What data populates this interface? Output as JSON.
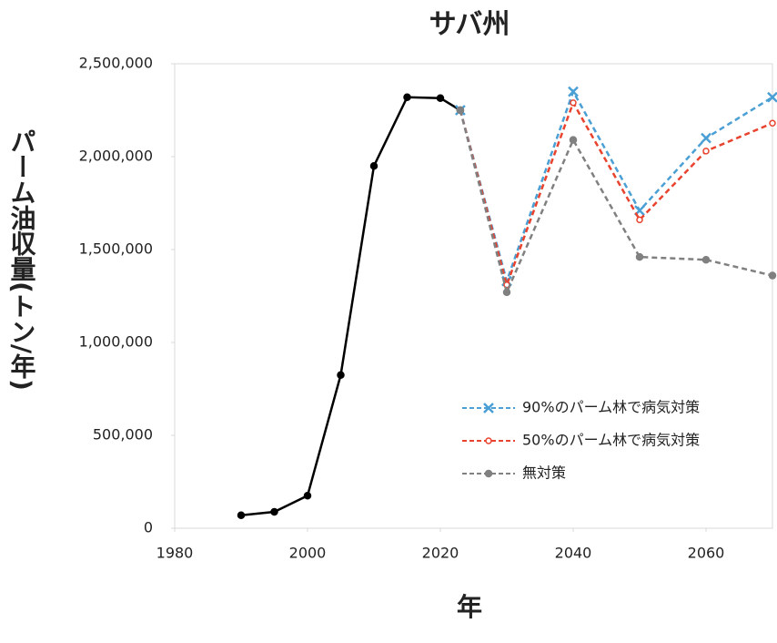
{
  "chart_data": {
    "type": "line",
    "title": "サバ州",
    "xlabel": "年",
    "ylabel": "パーム油収量(トン/年)",
    "xlim": [
      1980,
      2070
    ],
    "xticks": [
      1980,
      2000,
      2020,
      2040,
      2060
    ],
    "ylim": [
      0,
      2500000
    ],
    "yticks": [
      0,
      {
        "value": 500000,
        "label": "500,000"
      },
      {
        "value": 1000000,
        "label": "1,000,000"
      },
      {
        "value": 1500000,
        "label": "1,500,000"
      },
      {
        "value": 2000000,
        "label": "2,000,000"
      },
      {
        "value": 2500000,
        "label": "2,500,000"
      }
    ],
    "legend": "lower right",
    "series": [
      {
        "color": "#000000",
        "marker": "dot",
        "dashed": false,
        "x": [
          1990,
          1995,
          2000,
          2005,
          2010,
          2015,
          2020,
          2023
        ],
        "values": [
          70000,
          88000,
          175000,
          825000,
          1950000,
          2320000,
          2315000,
          2250000
        ]
      },
      {
        "name": "90%のパーム林で病気対策",
        "color": "#4a9fd4",
        "marker": "x",
        "dashed": true,
        "x": [
          2023,
          2030,
          2040,
          2050,
          2060,
          2070
        ],
        "values": [
          2250000,
          1330000,
          2350000,
          1710000,
          2100000,
          2320000
        ]
      },
      {
        "name": "50%のパーム林で病気対策",
        "color": "#e8432e",
        "marker": "ring",
        "dashed": true,
        "x": [
          2023,
          2030,
          2040,
          2050,
          2060,
          2070
        ],
        "values": [
          2250000,
          1310000,
          2290000,
          1660000,
          2030000,
          2180000
        ]
      },
      {
        "name": "無対策",
        "color": "#808080",
        "marker": "dot",
        "dashed": true,
        "x": [
          2023,
          2030,
          2040,
          2050,
          2060,
          2070
        ],
        "values": [
          2250000,
          1270000,
          2090000,
          1460000,
          1445000,
          1360000
        ]
      }
    ]
  }
}
